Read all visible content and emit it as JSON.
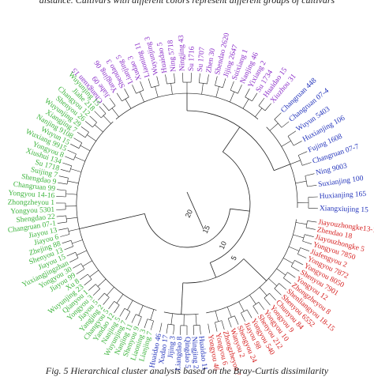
{
  "top_text": "distance. Cultivars with different colors represent different groups of cultivars",
  "caption": "Fig. 5 Hierarchical cluster analysis based on the Bray-Curtis dissimilarity",
  "scale_labels": [
    "5",
    "10",
    "15",
    "20"
  ],
  "colors": {
    "purple": "#8b2fc9",
    "blue": "#2233bb",
    "red": "#d61f1f",
    "green": "#3cb43c",
    "branch": "#222222"
  },
  "groups": [
    {
      "id": "purple",
      "color": "#8b2fc9",
      "labels": [
        "Changxuan 15",
        "Jiahe 09",
        "Yangjing 06",
        "Shendao 3",
        "Lianjing 5",
        "Xudao 3",
        "Liaoning 11",
        "Wuyunjing 3",
        "Huaidao 5",
        "Ning 5718",
        "Ningjing 43",
        "Su 1716",
        "Su 1707",
        "Zhen 30",
        "Shendao 2620",
        "Jijing 2647",
        "Suixiang 1",
        "Nanjing 46",
        "Yixiang 2",
        "Su 1734",
        "Huaidao 15",
        "Xiuzhou 31"
      ]
    },
    {
      "id": "blue",
      "color": "#2233bb",
      "labels": [
        "Changruan 448",
        "Changruan 07-4",
        "Wuyun 5403",
        "Huxianjing 106",
        "Fujing 1608",
        "Changruan 07-7",
        "Ning 9003",
        "Suxianjing 100",
        "Huxianjing 165",
        "Xiangxiujing 15"
      ]
    },
    {
      "id": "red",
      "color": "#d61f1f",
      "labels": [
        "Jiayouzhongke13-1",
        "Zhendao 18",
        "Jiayouzhongke 5",
        "Yongyou 7850",
        "Jiafengyou 2",
        "Yongyou 7872",
        "Yongyou 8050",
        "Shenyou 7901",
        "Yongyou 12",
        "Zhongzheyou 8",
        "Shenliangyou 18-15",
        "Shenyou 6552",
        "Chunyou 84",
        "Yongyou 9",
        "Yongyou 10",
        "Shenyou 212",
        "Yongyou 540",
        "Jiayou 98",
        "Shengyou 24",
        "Wanyou 2",
        "Zhongzheyou 3",
        "Yongyou 6",
        "Yongyou 46"
      ]
    },
    {
      "id": "blue2",
      "color": "#2233bb",
      "labels": [
        "Huaidao 11",
        "Ningjing 2",
        "Qingdao 5",
        "Liangdao 8",
        "Jijing 3",
        "Xudao 17",
        "Huaidao 46"
      ]
    },
    {
      "id": "green",
      "color": "#3cb43c",
      "labels": [
        "Lianjing 7",
        "Liaoning 3",
        "Shenyou 9",
        "Nanjing 11",
        "Wuyunjing 7",
        "Nanjing 5",
        "Yandao 12",
        "Changyou 5",
        "Yangjing 2",
        "Jiayou 5",
        "Yongyou 3",
        "Qianyou 1",
        "Wuyunjing 23",
        "Xu 8",
        "Jiayou 99",
        "Yongyou 30",
        "Yuxiangjingzhan",
        "Jiayou 15",
        "Shenyou 13",
        "Zhejing 88",
        "Jiayou 6",
        "Jiayou 13",
        "Changruan 07-1",
        "Shengdao 22",
        "Yongyou 5301",
        "Zhongzheyou 1",
        "Yongyou 14-16",
        "Changruan 99",
        "Shengdao 9",
        "Suijing 7",
        "Su 1718",
        "Xiushui 134",
        "Yongyou 8",
        "Wuxiang 9915",
        "Wuyun 15",
        "Nanjing 9108",
        "Xiangjing 7",
        "Wuyunjing 29",
        "Shenyou 26",
        "Changyou 12",
        "Jiahe 218",
        "Wuyunjing 15"
      ]
    }
  ]
}
